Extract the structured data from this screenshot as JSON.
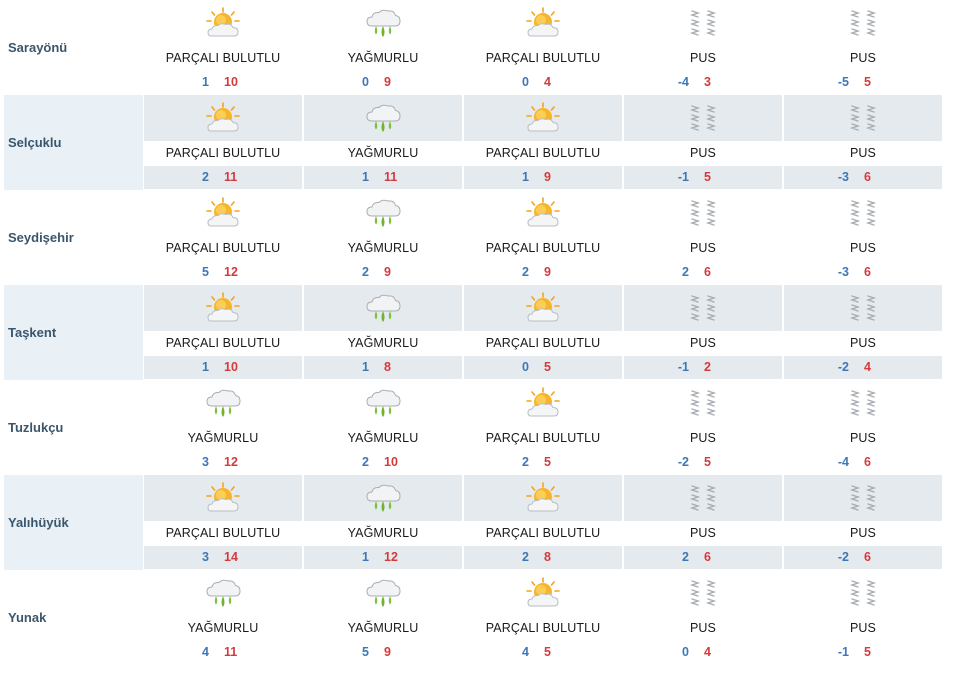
{
  "colors": {
    "min_temp": "#3c78b8",
    "max_temp": "#d53a3a",
    "city": "#3a566c",
    "alt_row": "#e4eaee"
  },
  "rows": [
    {
      "city": "Sarayönü",
      "days": [
        {
          "icon": "partly-cloudy-icon",
          "condition": "PARÇALI BULUTLU",
          "min": "1",
          "max": "10"
        },
        {
          "icon": "rain-icon",
          "condition": "YAĞMURLU",
          "min": "0",
          "max": "9"
        },
        {
          "icon": "partly-cloudy-icon",
          "condition": "PARÇALI BULUTLU",
          "min": "0",
          "max": "4"
        },
        {
          "icon": "mist-icon",
          "condition": "PUS",
          "min": "-4",
          "max": "3"
        },
        {
          "icon": "mist-icon",
          "condition": "PUS",
          "min": "-5",
          "max": "5"
        }
      ]
    },
    {
      "city": "Selçuklu",
      "days": [
        {
          "icon": "partly-cloudy-icon",
          "condition": "PARÇALI BULUTLU",
          "min": "2",
          "max": "11"
        },
        {
          "icon": "rain-icon",
          "condition": "YAĞMURLU",
          "min": "1",
          "max": "11"
        },
        {
          "icon": "partly-cloudy-icon",
          "condition": "PARÇALI BULUTLU",
          "min": "1",
          "max": "9"
        },
        {
          "icon": "mist-icon",
          "condition": "PUS",
          "min": "-1",
          "max": "5"
        },
        {
          "icon": "mist-icon",
          "condition": "PUS",
          "min": "-3",
          "max": "6"
        }
      ]
    },
    {
      "city": "Seydişehir",
      "days": [
        {
          "icon": "partly-cloudy-icon",
          "condition": "PARÇALI BULUTLU",
          "min": "5",
          "max": "12"
        },
        {
          "icon": "rain-icon",
          "condition": "YAĞMURLU",
          "min": "2",
          "max": "9"
        },
        {
          "icon": "partly-cloudy-icon",
          "condition": "PARÇALI BULUTLU",
          "min": "2",
          "max": "9"
        },
        {
          "icon": "mist-icon",
          "condition": "PUS",
          "min": "2",
          "max": "6"
        },
        {
          "icon": "mist-icon",
          "condition": "PUS",
          "min": "-3",
          "max": "6"
        }
      ]
    },
    {
      "city": "Taşkent",
      "days": [
        {
          "icon": "partly-cloudy-icon",
          "condition": "PARÇALI BULUTLU",
          "min": "1",
          "max": "10"
        },
        {
          "icon": "rain-icon",
          "condition": "YAĞMURLU",
          "min": "1",
          "max": "8"
        },
        {
          "icon": "partly-cloudy-icon",
          "condition": "PARÇALI BULUTLU",
          "min": "0",
          "max": "5"
        },
        {
          "icon": "mist-icon",
          "condition": "PUS",
          "min": "-1",
          "max": "2"
        },
        {
          "icon": "mist-icon",
          "condition": "PUS",
          "min": "-2",
          "max": "4"
        }
      ]
    },
    {
      "city": "Tuzlukçu",
      "days": [
        {
          "icon": "rain-icon",
          "condition": "YAĞMURLU",
          "min": "3",
          "max": "12"
        },
        {
          "icon": "rain-icon",
          "condition": "YAĞMURLU",
          "min": "2",
          "max": "10"
        },
        {
          "icon": "partly-cloudy-icon",
          "condition": "PARÇALI BULUTLU",
          "min": "2",
          "max": "5"
        },
        {
          "icon": "mist-icon",
          "condition": "PUS",
          "min": "-2",
          "max": "5"
        },
        {
          "icon": "mist-icon",
          "condition": "PUS",
          "min": "-4",
          "max": "6"
        }
      ]
    },
    {
      "city": "Yalıhüyük",
      "days": [
        {
          "icon": "partly-cloudy-icon",
          "condition": "PARÇALI BULUTLU",
          "min": "3",
          "max": "14"
        },
        {
          "icon": "rain-icon",
          "condition": "YAĞMURLU",
          "min": "1",
          "max": "12"
        },
        {
          "icon": "partly-cloudy-icon",
          "condition": "PARÇALI BULUTLU",
          "min": "2",
          "max": "8"
        },
        {
          "icon": "mist-icon",
          "condition": "PUS",
          "min": "2",
          "max": "6"
        },
        {
          "icon": "mist-icon",
          "condition": "PUS",
          "min": "-2",
          "max": "6"
        }
      ]
    },
    {
      "city": "Yunak",
      "days": [
        {
          "icon": "rain-icon",
          "condition": "YAĞMURLU",
          "min": "4",
          "max": "11"
        },
        {
          "icon": "rain-icon",
          "condition": "YAĞMURLU",
          "min": "5",
          "max": "9"
        },
        {
          "icon": "partly-cloudy-icon",
          "condition": "PARÇALI BULUTLU",
          "min": "4",
          "max": "5"
        },
        {
          "icon": "mist-icon",
          "condition": "PUS",
          "min": "0",
          "max": "4"
        },
        {
          "icon": "mist-icon",
          "condition": "PUS",
          "min": "-1",
          "max": "5"
        }
      ]
    }
  ]
}
